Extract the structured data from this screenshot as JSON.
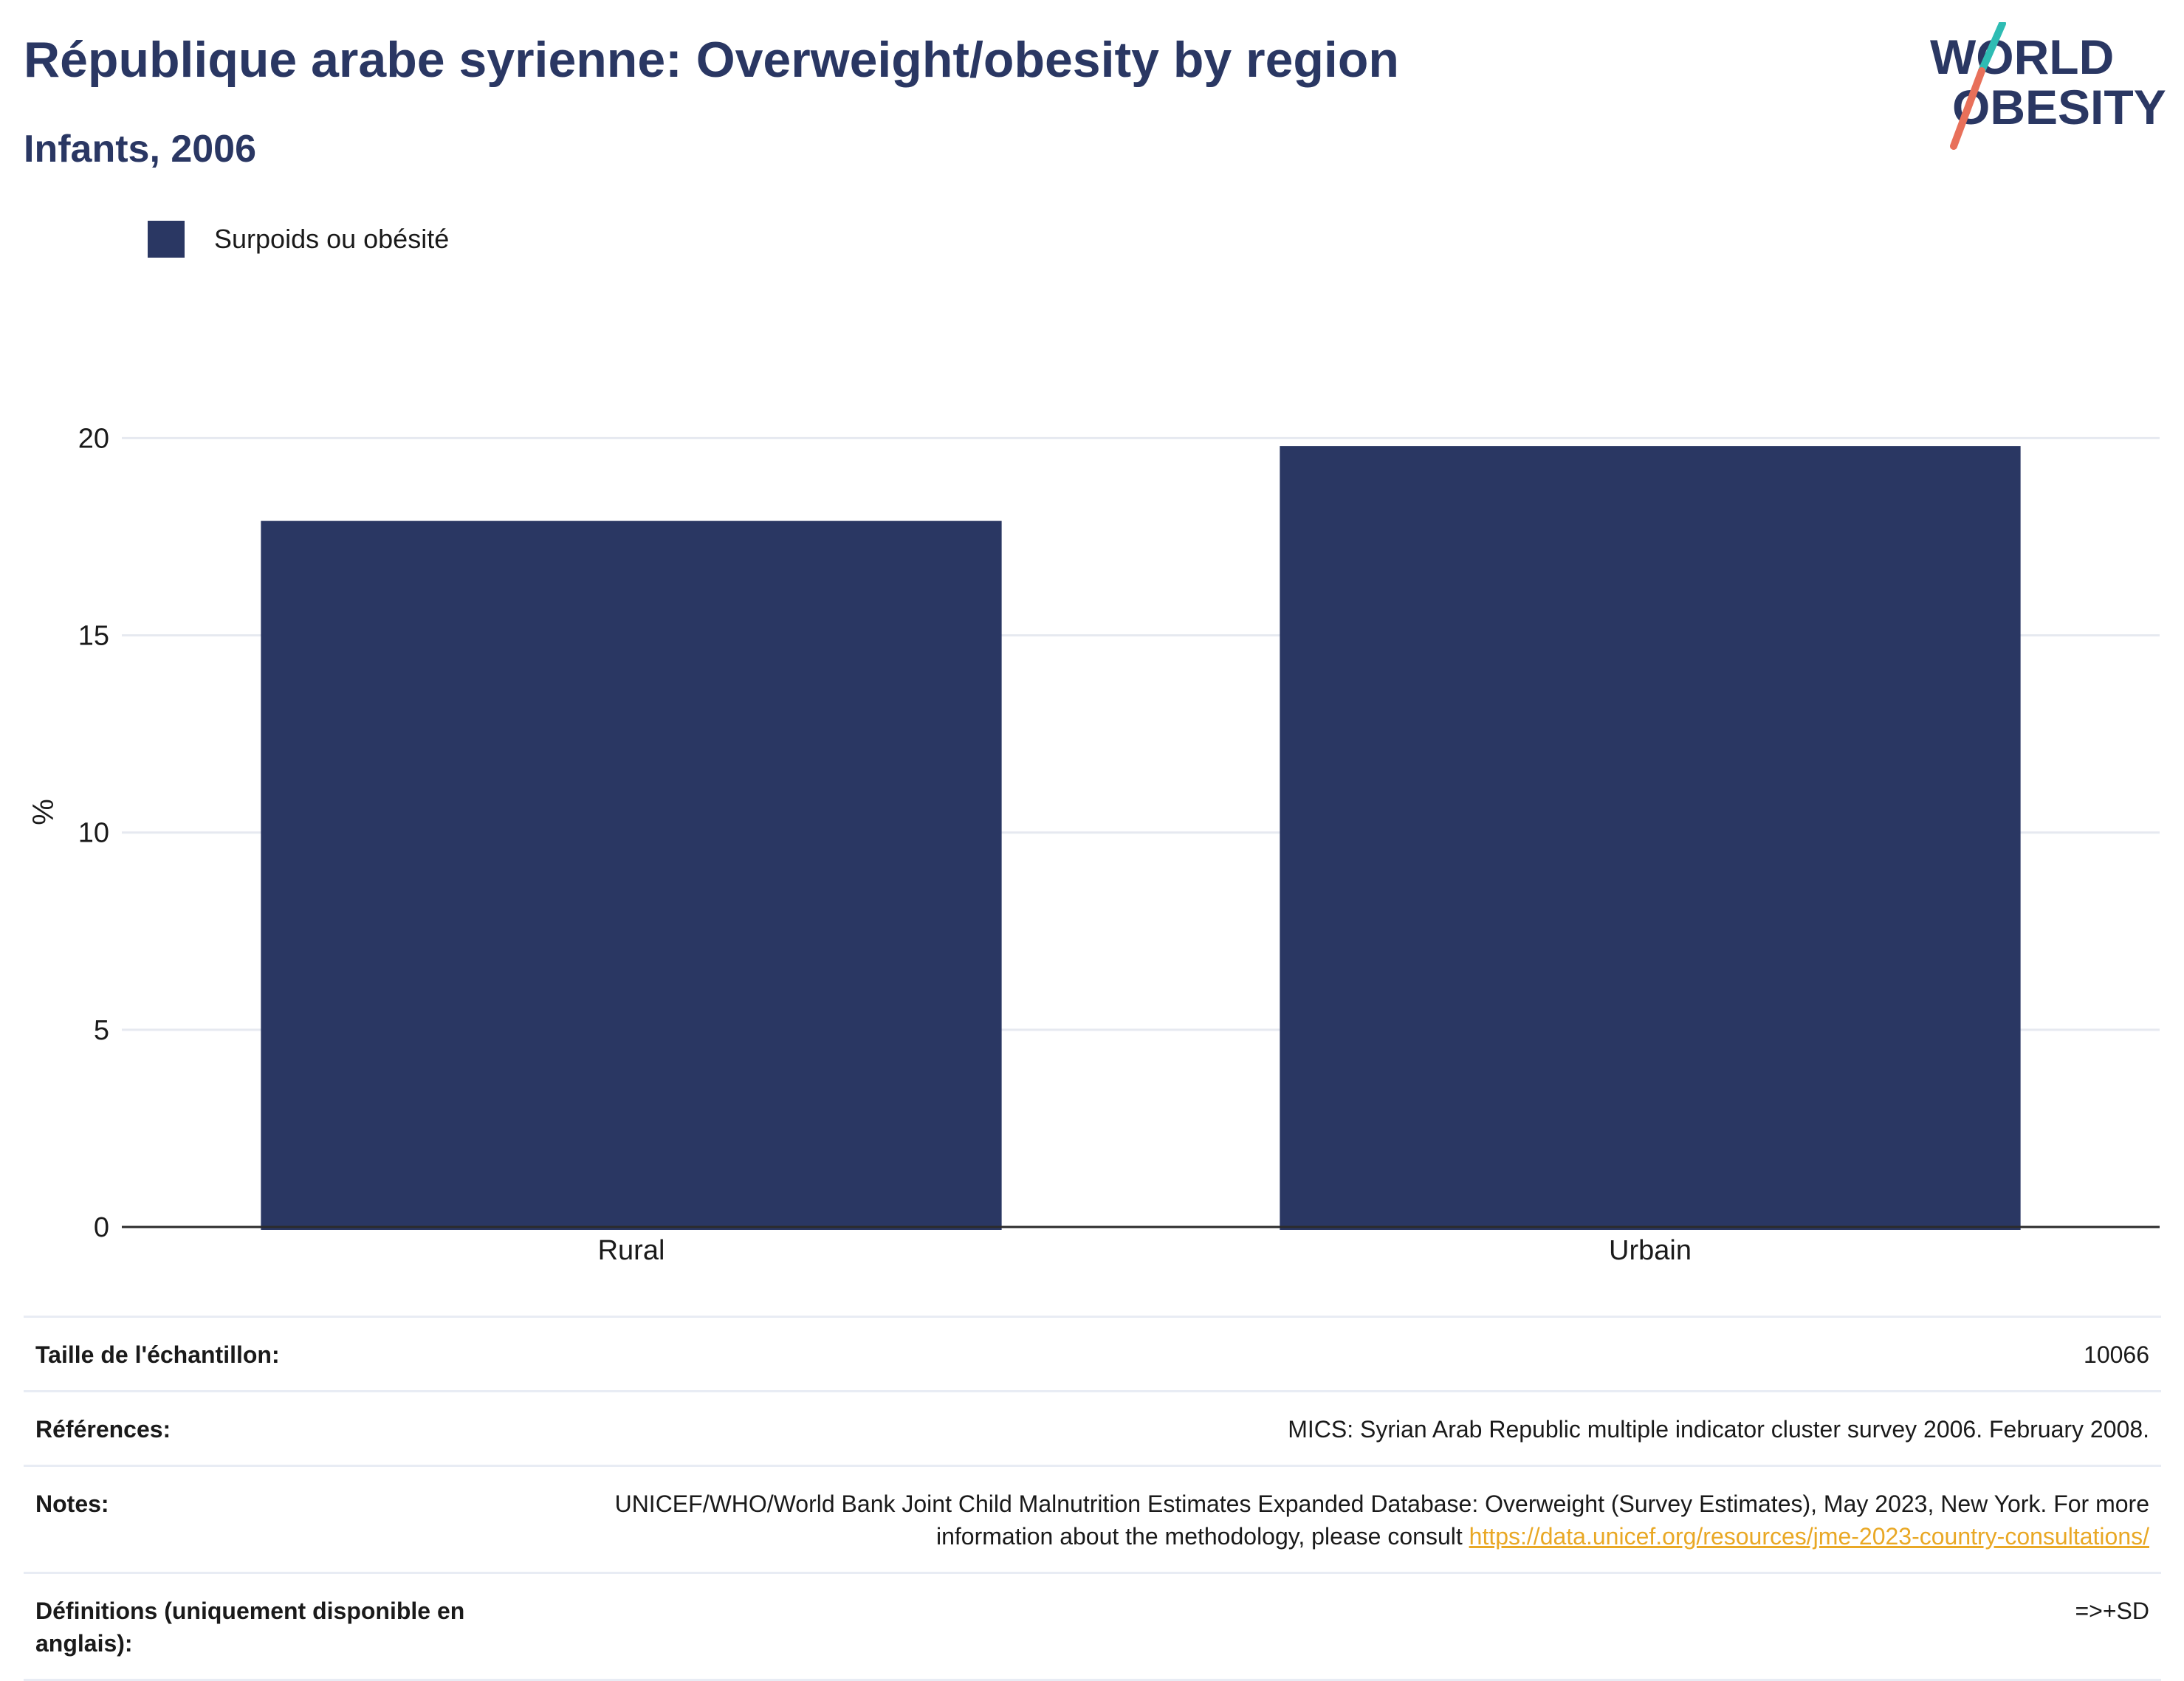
{
  "header": {
    "title": "République arabe syrienne: Overweight/obesity by region",
    "subtitle": "Infants, 2006"
  },
  "logo": {
    "line1": "WORLD",
    "line2": "OBESITY",
    "text_color": "#2a3763",
    "slash_colors": [
      "#2ebcb3",
      "#e8705a"
    ]
  },
  "legend": {
    "items": [
      {
        "label": "Surpoids ou obésité",
        "color": "#2a3763"
      }
    ]
  },
  "chart_data": {
    "type": "bar",
    "categories": [
      "Rural",
      "Urbain"
    ],
    "series": [
      {
        "name": "Surpoids ou obésité",
        "values": [
          17.9,
          19.8
        ],
        "color": "#2a3763"
      }
    ],
    "ylabel": "%",
    "ylim": [
      0,
      21
    ],
    "yticks": [
      0,
      5,
      10,
      15,
      20
    ],
    "grid": true
  },
  "footer": {
    "rows": [
      {
        "key": "Taille de l'échantillon:",
        "value": "10066"
      },
      {
        "key": "Références:",
        "value": "MICS: Syrian Arab Republic multiple indicator cluster survey 2006. February 2008."
      },
      {
        "key": "Notes:",
        "value": "UNICEF/WHO/World Bank Joint Child Malnutrition Estimates Expanded Database: Overweight (Survey Estimates), May 2023, New York. For more information about the methodology, please consult ",
        "link": "https://data.unicef.org/resources/jme-2023-country-consultations/"
      },
      {
        "key": "Définitions (uniquement disponible en anglais):",
        "value": "=>+SD"
      }
    ]
  }
}
